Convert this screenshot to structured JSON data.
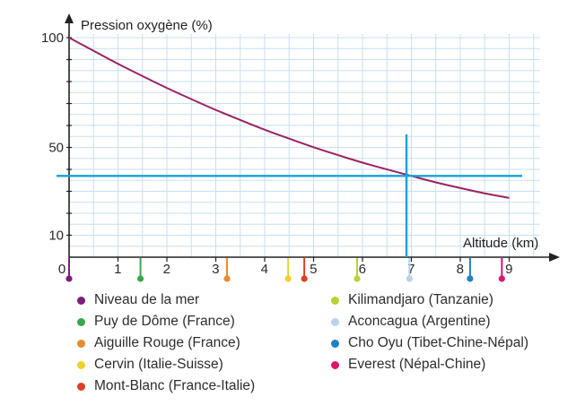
{
  "chart_data": {
    "type": "line",
    "ylabel": "Pression oxygène (%)",
    "xlabel": "Altitude (km)",
    "xlim": [
      0,
      9.7
    ],
    "ylim": [
      0,
      100
    ],
    "x_ticks": [
      "0",
      "1",
      "2",
      "3",
      "4",
      "5",
      "6",
      "7",
      "8",
      "9"
    ],
    "y_ticks": [
      {
        "value": 100,
        "label": "100"
      },
      {
        "value": 50,
        "label": "50"
      },
      {
        "value": 10,
        "label": "10"
      }
    ],
    "series": [
      {
        "name": "Pression oxygène",
        "color": "#9b2360",
        "x": [
          0,
          0.5,
          1,
          1.5,
          2,
          2.5,
          3,
          3.5,
          4,
          4.5,
          5,
          5.5,
          6,
          6.5,
          7,
          7.5,
          8,
          8.5,
          9
        ],
        "y": [
          100,
          94,
          88,
          82.5,
          77,
          72,
          67,
          62.5,
          58,
          54,
          50,
          46.5,
          43,
          40,
          37,
          34,
          31.5,
          29,
          27
        ]
      }
    ],
    "reference_lines": [
      {
        "orientation": "vertical",
        "x": 6.9,
        "color": "#1aa0d8"
      },
      {
        "orientation": "horizontal",
        "y": 37,
        "color": "#1aa0d8"
      }
    ],
    "markers": [
      {
        "name": "Niveau de la mer",
        "altitude": 0,
        "color": "#7b1f7e"
      },
      {
        "name": "Puy de Dôme (France)",
        "altitude": 1.46,
        "color": "#3aa64c"
      },
      {
        "name": "Aiguille Rouge (France)",
        "altitude": 3.23,
        "color": "#e88b2e"
      },
      {
        "name": "Cervin (Italie-Suisse)",
        "altitude": 4.48,
        "color": "#f0cf2e"
      },
      {
        "name": "Mont-Blanc (France-Italie)",
        "altitude": 4.81,
        "color": "#dc4026"
      },
      {
        "name": "Kilimandjaro (Tanzanie)",
        "altitude": 5.89,
        "color": "#b5d334"
      },
      {
        "name": "Aconcagua (Argentine)",
        "altitude": 6.96,
        "color": "#b9d3ea"
      },
      {
        "name": "Cho Oyu (Tibet-Chine-Népal)",
        "altitude": 8.2,
        "color": "#1e82c5"
      },
      {
        "name": "Everest (Népal-Chine)",
        "altitude": 8.85,
        "color": "#e0136f"
      }
    ]
  }
}
